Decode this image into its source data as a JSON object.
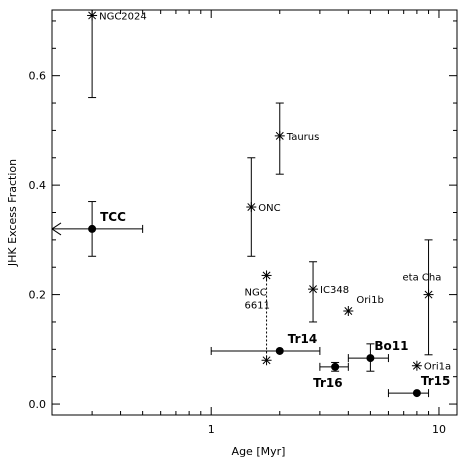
{
  "chart_data": {
    "type": "scatter",
    "title": "",
    "xlabel": "Age [Myr]",
    "ylabel": "JHK Excess Fraction",
    "xscale": "log",
    "xlim": [
      0.2,
      12
    ],
    "ylim": [
      -0.02,
      0.72
    ],
    "grid": false,
    "x_ticks": [
      {
        "value": 1,
        "label": "1"
      },
      {
        "value": 10,
        "label": "10"
      }
    ],
    "y_ticks": [
      {
        "value": 0.0,
        "label": "0.0"
      },
      {
        "value": 0.2,
        "label": "0.2"
      },
      {
        "value": 0.4,
        "label": "0.4"
      },
      {
        "value": 0.6,
        "label": "0.6"
      }
    ],
    "points": [
      {
        "label": "NGC2024",
        "x": 0.3,
        "y": 0.71,
        "y_err": [
          0.56,
          0.72
        ],
        "marker": "star",
        "label_style": "normal",
        "label_anchor": "right"
      },
      {
        "label": "Taurus",
        "x": 2.0,
        "y": 0.49,
        "y_err": [
          0.42,
          0.55
        ],
        "marker": "star",
        "label_style": "normal",
        "label_anchor": "right"
      },
      {
        "label": "ONC",
        "x": 1.5,
        "y": 0.36,
        "y_err": [
          0.27,
          0.45
        ],
        "marker": "star",
        "label_style": "normal",
        "label_anchor": "right"
      },
      {
        "label": "TCC",
        "x": 0.3,
        "y": 0.32,
        "y_err": [
          0.27,
          0.37
        ],
        "x_err": [
          0.2,
          0.5
        ],
        "x_upper_limit_arrow": "left",
        "marker": "circle",
        "label_style": "bold",
        "label_anchor": "right-above"
      },
      {
        "label": "IC348",
        "x": 2.8,
        "y": 0.21,
        "y_err": [
          0.15,
          0.26
        ],
        "marker": "star",
        "label_style": "normal",
        "label_anchor": "right"
      },
      {
        "label": "eta Cha",
        "x": 9.0,
        "y": 0.2,
        "y_err": [
          0.09,
          0.3
        ],
        "marker": "star",
        "label_style": "normal",
        "label_anchor": "left-above"
      },
      {
        "label": "Ori1b",
        "x": 4.0,
        "y": 0.17,
        "marker": "star",
        "label_style": "normal",
        "label_anchor": "right-above"
      },
      {
        "label": "NGC\n6611",
        "x": 1.75,
        "y": 0.235,
        "y_err_dotted_to": 0.08,
        "marker": "star",
        "second_marker_y": 0.08,
        "label_style": "normal",
        "label_anchor": "below-left"
      },
      {
        "label": "Tr14",
        "x": 2.0,
        "y": 0.097,
        "x_err": [
          1.0,
          3.0
        ],
        "marker": "circle",
        "label_style": "bold",
        "label_anchor": "right-above"
      },
      {
        "label": "Tr16",
        "x": 3.5,
        "y": 0.068,
        "x_err": [
          3.0,
          4.0
        ],
        "y_err": [
          0.06,
          0.076
        ],
        "marker": "circle",
        "label_style": "bold",
        "label_anchor": "below-left"
      },
      {
        "label": "Bo11",
        "x": 5.0,
        "y": 0.084,
        "x_err": [
          4.0,
          6.0
        ],
        "y_err": [
          0.06,
          0.11
        ],
        "marker": "circle",
        "label_style": "bold",
        "label_anchor": "above-right"
      },
      {
        "label": "Ori1a",
        "x": 8.0,
        "y": 0.07,
        "marker": "star",
        "label_style": "normal",
        "label_anchor": "right"
      },
      {
        "label": "Tr15",
        "x": 8.0,
        "y": 0.02,
        "x_err": [
          6.0,
          9.0
        ],
        "marker": "circle",
        "label_style": "bold",
        "label_anchor": "above-right"
      }
    ]
  }
}
